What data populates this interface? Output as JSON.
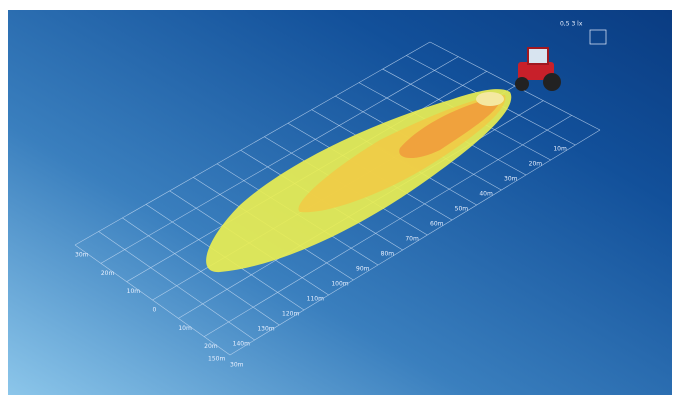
{
  "legend": {
    "label": "0,5 3 lx"
  },
  "distance_labels": [
    "10m",
    "20m",
    "30m",
    "40m",
    "50m",
    "60m",
    "70m",
    "80m",
    "90m",
    "100m",
    "110m",
    "120m",
    "130m",
    "140m",
    "150m"
  ],
  "lateral_labels": [
    "30m",
    "20m",
    "10m",
    "0",
    "10m",
    "20m",
    "30m"
  ]
}
